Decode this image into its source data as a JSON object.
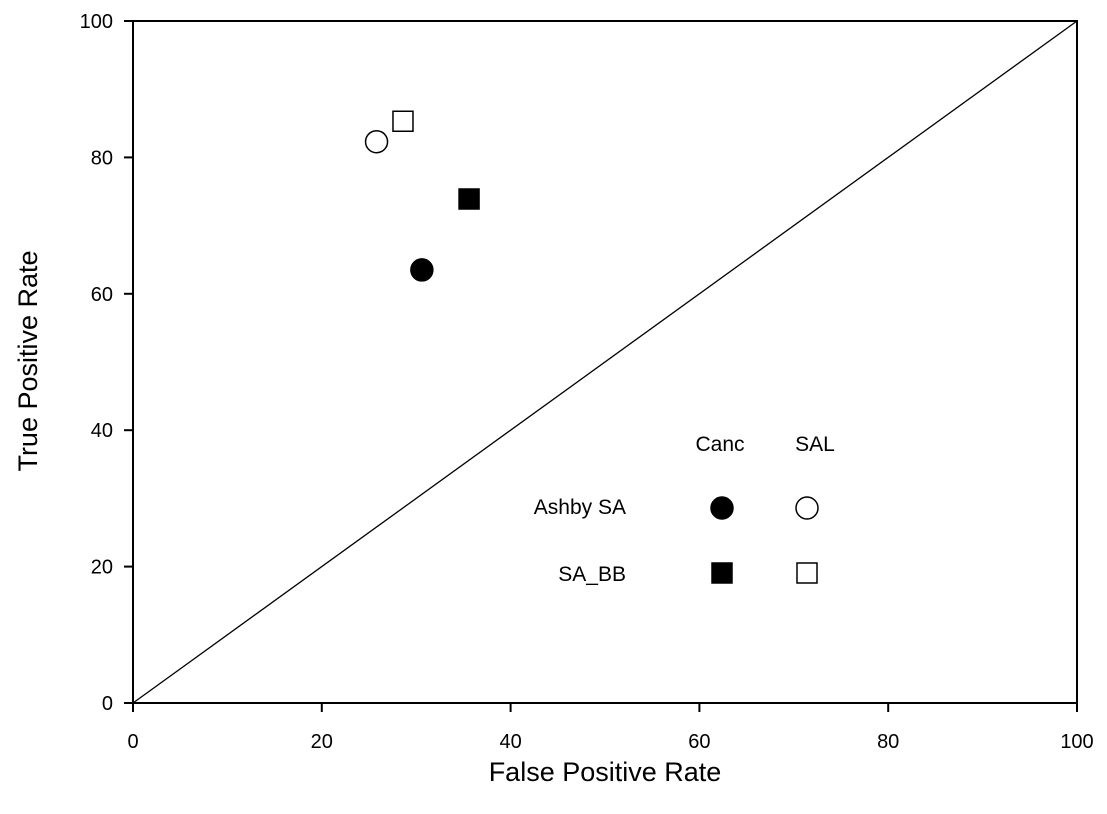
{
  "chart_data": {
    "type": "scatter",
    "title": "",
    "xlabel": "False Positive Rate",
    "ylabel": "True Positive Rate",
    "xlim": [
      0,
      100
    ],
    "ylim": [
      0,
      100
    ],
    "xticks": [
      "0",
      "20",
      "40",
      "60",
      "80",
      "100"
    ],
    "yticks": [
      "0",
      "20",
      "40",
      "60",
      "80",
      "100"
    ],
    "grid": false,
    "legend_position": "lower-right",
    "legend": {
      "column_headers": [
        "Canc",
        "SAL"
      ],
      "row_labels": [
        "Ashby SA",
        "SA_BB"
      ]
    },
    "reference_line": {
      "from": [
        0,
        0
      ],
      "to": [
        100,
        100
      ]
    },
    "series": [
      {
        "method": "Ashby SA",
        "group": "Canc",
        "marker": "circle",
        "fill": "filled",
        "x": 30.6,
        "y": 63.5
      },
      {
        "method": "Ashby SA",
        "group": "SAL",
        "marker": "circle",
        "fill": "open",
        "x": 25.8,
        "y": 82.3
      },
      {
        "method": "SA_BB",
        "group": "Canc",
        "marker": "square",
        "fill": "filled",
        "x": 35.6,
        "y": 73.9
      },
      {
        "method": "SA_BB",
        "group": "SAL",
        "marker": "square",
        "fill": "open",
        "x": 28.6,
        "y": 85.3
      }
    ],
    "colors": {
      "ink": "#000000",
      "background": "#ffffff"
    }
  }
}
